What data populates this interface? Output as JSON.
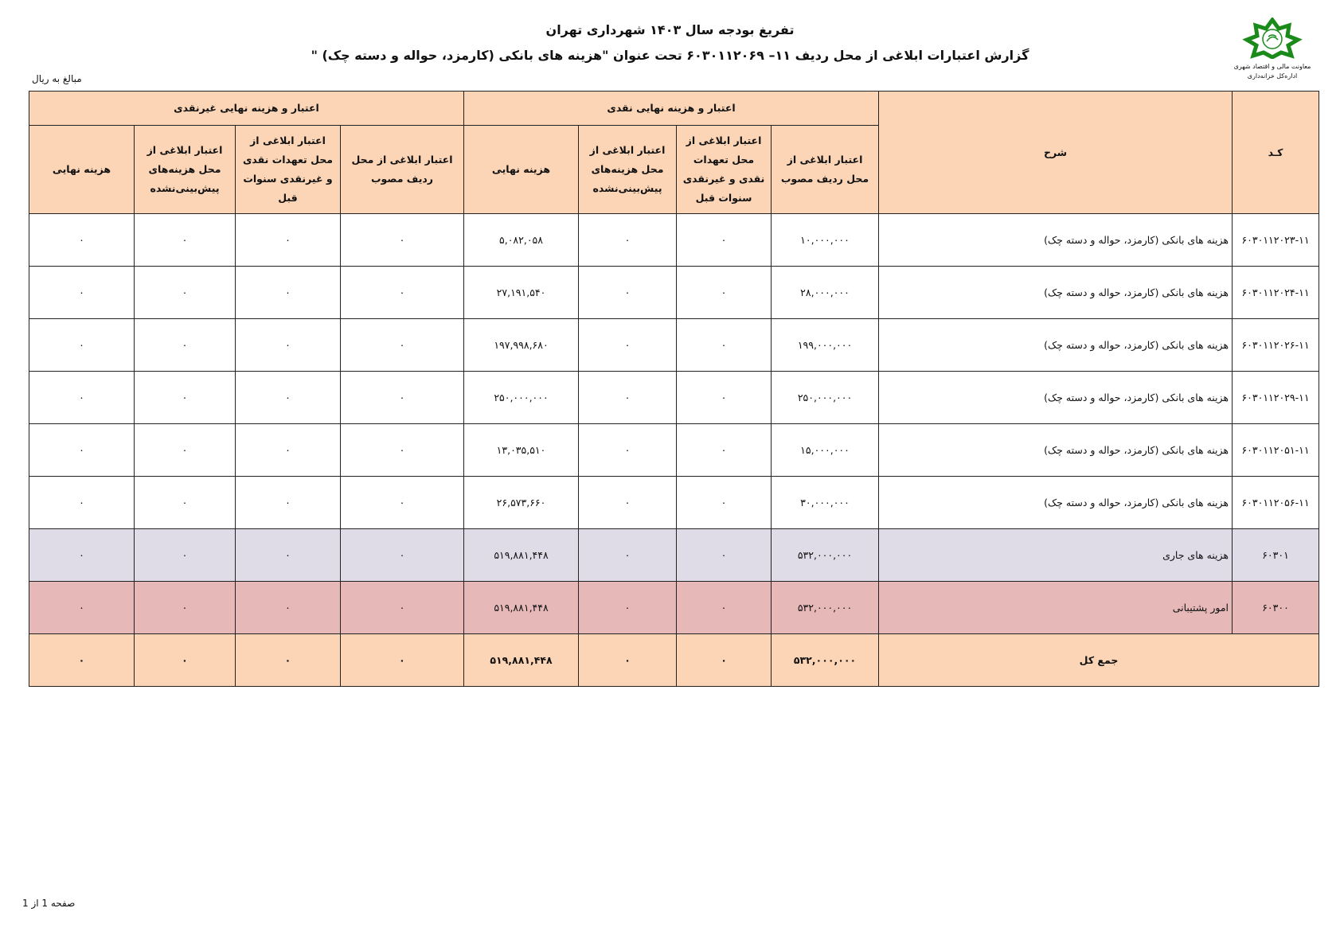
{
  "header": {
    "title": "تفریغ بودجه سال ۱۴۰۳ شهرداری تهران",
    "subtitle": "گزارش اعتبارات ابلاغی از محل ردیف ۱۱– ۶۰۳۰۱۱۲۰۶۹ تحت عنوان \"هزینه های بانکی (کارمزد، حواله و دسته چک) \"",
    "unit_note": "مبالغ به ریال",
    "logo": {
      "line1": "معاونت مالی و اقتصاد شهری",
      "line2": "اداره‌کل خزانه‌داری",
      "color": "#1a8a1a"
    }
  },
  "table": {
    "col_code": "کـد",
    "col_desc": "شرح",
    "group_cash": "اعتبار و هزینه نهایی نقدی",
    "group_noncash": "اعتبار و هزینه نهایی غیرنقدی",
    "cash_cols": [
      "اعتبار ابلاغی از محل ردیف مصوب",
      "اعتبار ابلاغی از محل تعهدات نقدی و غیرنقدی سنوات قبل",
      "اعتبار ابلاغی از محل هزینه‌های پیش‌بینی‌نشده",
      "هزینه نهایی"
    ],
    "noncash_cols": [
      "اعتبار ابلاغی از محل ردیف مصوب",
      "اعتبار ابلاغی از محل تعهدات نقدی و غیرنقدی سنوات قبل",
      "اعتبار ابلاغی از محل هزینه‌های پیش‌بینی‌نشده",
      "هزینه نهایی"
    ],
    "rows": [
      {
        "type": "item",
        "code": "۶۰۳۰۱۱۲۰۲۳-۱۱",
        "desc": "هزینه های بانکی (کارمزد، حواله و دسته چک)",
        "v": [
          "۱۰,۰۰۰,۰۰۰",
          "۰",
          "۰",
          "۵,۰۸۲,۰۵۸",
          "۰",
          "۰",
          "۰",
          "۰"
        ]
      },
      {
        "type": "item",
        "code": "۶۰۳۰۱۱۲۰۲۴-۱۱",
        "desc": "هزینه های بانکی (کارمزد، حواله و دسته چک)",
        "v": [
          "۲۸,۰۰۰,۰۰۰",
          "۰",
          "۰",
          "۲۷,۱۹۱,۵۴۰",
          "۰",
          "۰",
          "۰",
          "۰"
        ]
      },
      {
        "type": "item",
        "code": "۶۰۳۰۱۱۲۰۲۶-۱۱",
        "desc": "هزینه های بانکی (کارمزد، حواله و دسته چک)",
        "v": [
          "۱۹۹,۰۰۰,۰۰۰",
          "۰",
          "۰",
          "۱۹۷,۹۹۸,۶۸۰",
          "۰",
          "۰",
          "۰",
          "۰"
        ]
      },
      {
        "type": "item",
        "code": "۶۰۳۰۱۱۲۰۲۹-۱۱",
        "desc": "هزینه های بانکی (کارمزد، حواله و دسته چک)",
        "v": [
          "۲۵۰,۰۰۰,۰۰۰",
          "۰",
          "۰",
          "۲۵۰,۰۰۰,۰۰۰",
          "۰",
          "۰",
          "۰",
          "۰"
        ]
      },
      {
        "type": "item",
        "code": "۶۰۳۰۱۱۲۰۵۱-۱۱",
        "desc": "هزینه های بانکی (کارمزد، حواله و دسته چک)",
        "v": [
          "۱۵,۰۰۰,۰۰۰",
          "۰",
          "۰",
          "۱۳,۰۳۵,۵۱۰",
          "۰",
          "۰",
          "۰",
          "۰"
        ]
      },
      {
        "type": "item",
        "code": "۶۰۳۰۱۱۲۰۵۶-۱۱",
        "desc": "هزینه های بانکی (کارمزد، حواله و دسته چک)",
        "v": [
          "۳۰,۰۰۰,۰۰۰",
          "۰",
          "۰",
          "۲۶,۵۷۳,۶۶۰",
          "۰",
          "۰",
          "۰",
          "۰"
        ]
      },
      {
        "type": "sub",
        "code": "۶۰۳۰۱",
        "desc": "هزینه های جاری",
        "v": [
          "۵۳۲,۰۰۰,۰۰۰",
          "۰",
          "۰",
          "۵۱۹,۸۸۱,۴۴۸",
          "۰",
          "۰",
          "۰",
          "۰"
        ]
      },
      {
        "type": "sec",
        "code": "۶۰۳۰۰",
        "desc": "امور پشتیبانی",
        "v": [
          "۵۳۲,۰۰۰,۰۰۰",
          "۰",
          "۰",
          "۵۱۹,۸۸۱,۴۴۸",
          "۰",
          "۰",
          "۰",
          "۰"
        ]
      }
    ],
    "total": {
      "label": "جمع کل",
      "v": [
        "۵۳۲,۰۰۰,۰۰۰",
        "۰",
        "۰",
        "۵۱۹,۸۸۱,۴۴۸",
        "۰",
        "۰",
        "۰",
        "۰"
      ]
    },
    "colors": {
      "header": "#FBD5B5",
      "subtotal": "#DFDCE8",
      "section": "#E6B8B8"
    }
  },
  "footer": {
    "page": "صفحه 1 از 1"
  }
}
